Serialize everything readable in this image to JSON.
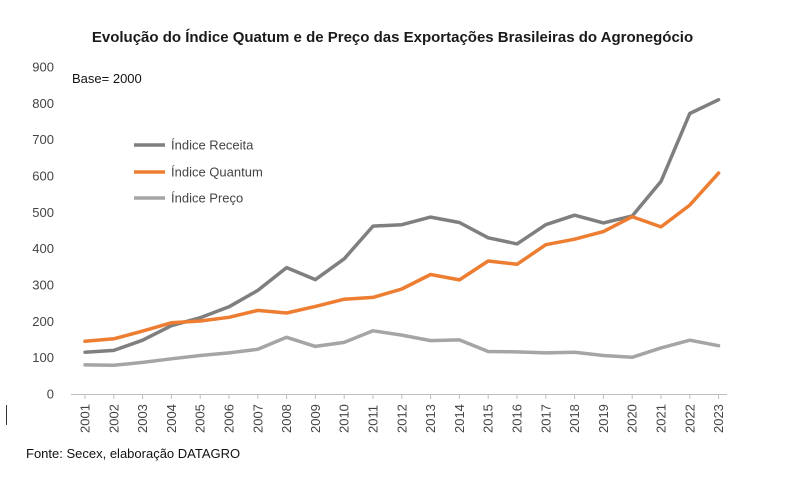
{
  "chart_data": {
    "type": "line",
    "title": "Evolução do Índice Quatum e de Preço das Exportações Brasileiras do Agronegócio",
    "base_note": "Base= 2000",
    "source": "Fonte: Secex, elaboração DATAGRO",
    "xlabel": "",
    "ylabel": "",
    "ylim": [
      0,
      900
    ],
    "yticks": [
      "0",
      "100",
      "200",
      "300",
      "400",
      "500",
      "600",
      "700",
      "800",
      "900"
    ],
    "categories": [
      "2001",
      "2002",
      "2003",
      "2004",
      "2005",
      "2006",
      "2007",
      "2008",
      "2009",
      "2010",
      "2011",
      "2012",
      "2013",
      "2014",
      "2015",
      "2016",
      "2017",
      "2018",
      "2019",
      "2020",
      "2021",
      "2022",
      "2023"
    ],
    "grid": false,
    "legend_position": "upper-left",
    "series": [
      {
        "name": "Índice Receita",
        "color": "#7f7f7f",
        "values": [
          115,
          120,
          148,
          188,
          210,
          240,
          285,
          348,
          315,
          372,
          462,
          466,
          487,
          472,
          430,
          413,
          466,
          492,
          471,
          490,
          585,
          772,
          810
        ]
      },
      {
        "name": "Índice Quantum",
        "color": "#ed7d31",
        "values": [
          145,
          152,
          173,
          196,
          201,
          211,
          230,
          223,
          241,
          261,
          266,
          289,
          329,
          314,
          366,
          357,
          411,
          426,
          447,
          488,
          460,
          520,
          608
        ]
      },
      {
        "name": "Índice Preço",
        "color": "#a5a5a5",
        "values": [
          80,
          79,
          87,
          97,
          106,
          113,
          123,
          156,
          131,
          142,
          174,
          162,
          147,
          149,
          117,
          116,
          113,
          115,
          106,
          101,
          127,
          148,
          133
        ]
      }
    ]
  }
}
